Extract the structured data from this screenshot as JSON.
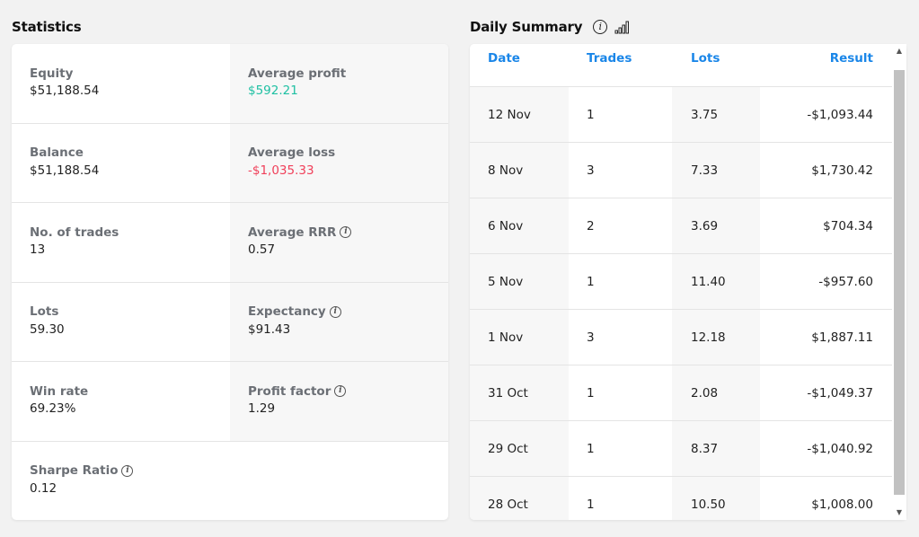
{
  "statistics": {
    "title": "Statistics",
    "rows": [
      {
        "left": {
          "label": "Equity",
          "value": "$51,188.54"
        },
        "right": {
          "label": "Average profit",
          "value": "$592.21"
        }
      },
      {
        "left": {
          "label": "Balance",
          "value": "$51,188.54"
        },
        "right": {
          "label": "Average loss",
          "value": "-$1,035.33"
        }
      },
      {
        "left": {
          "label": "No. of trades",
          "value": "13"
        },
        "right": {
          "label": "Average RRR",
          "value": "0.57"
        }
      },
      {
        "left": {
          "label": "Lots",
          "value": "59.30"
        },
        "right": {
          "label": "Expectancy",
          "value": "$91.43"
        }
      },
      {
        "left": {
          "label": "Win rate",
          "value": "69.23%"
        },
        "right": {
          "label": "Profit factor",
          "value": "1.29"
        }
      },
      {
        "left": {
          "label": "Sharpe Ratio",
          "value": "0.12"
        }
      }
    ]
  },
  "daily_summary": {
    "title": "Daily Summary",
    "columns": {
      "date": "Date",
      "trades": "Trades",
      "lots": "Lots",
      "result": "Result"
    },
    "rows": [
      {
        "date": "12 Nov",
        "trades": "1",
        "lots": "3.75",
        "result": "-$1,093.44"
      },
      {
        "date": "8 Nov",
        "trades": "3",
        "lots": "7.33",
        "result": "$1,730.42"
      },
      {
        "date": "6 Nov",
        "trades": "2",
        "lots": "3.69",
        "result": "$704.34"
      },
      {
        "date": "5 Nov",
        "trades": "1",
        "lots": "11.40",
        "result": "-$957.60"
      },
      {
        "date": "1 Nov",
        "trades": "3",
        "lots": "12.18",
        "result": "$1,887.11"
      },
      {
        "date": "31 Oct",
        "trades": "1",
        "lots": "2.08",
        "result": "-$1,049.37"
      },
      {
        "date": "29 Oct",
        "trades": "1",
        "lots": "8.37",
        "result": "-$1,040.92"
      },
      {
        "date": "28 Oct",
        "trades": "1",
        "lots": "10.50",
        "result": "$1,008.00"
      }
    ]
  },
  "icons": {
    "info": "i",
    "scroll_up": "▲",
    "scroll_down": "▼"
  },
  "colors": {
    "positive": "#1fc0a3",
    "negative": "#f0405a",
    "accent": "#1a86e8"
  }
}
